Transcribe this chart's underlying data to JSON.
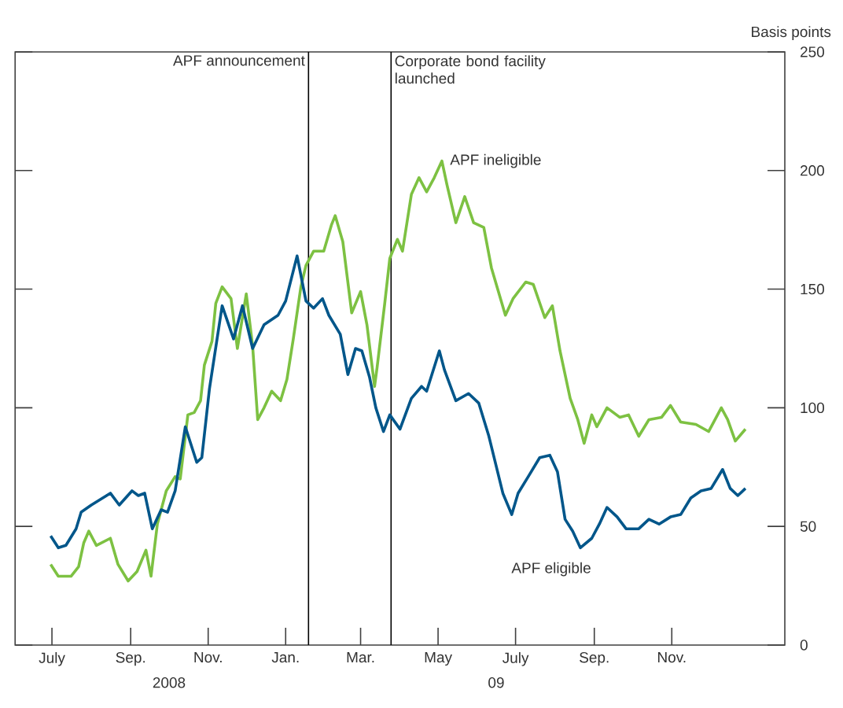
{
  "chart_data": {
    "type": "line",
    "ylabel": "Basis points",
    "xlim": [
      "2008-06-02",
      "2010-01-29"
    ],
    "xticks": [
      {
        "value": "2008-07-01",
        "label": "July"
      },
      {
        "value": "2008-09-01",
        "label": "Sep."
      },
      {
        "value": "2008-11-01",
        "label": "Nov."
      },
      {
        "value": "2009-01-01",
        "label": "Jan."
      },
      {
        "value": "2009-03-01",
        "label": "Mar."
      },
      {
        "value": "2009-05-01",
        "label": "May"
      },
      {
        "value": "2009-07-01",
        "label": "July"
      },
      {
        "value": "2009-09-01",
        "label": "Sep."
      },
      {
        "value": "2009-11-01",
        "label": "Nov."
      }
    ],
    "ylim": [
      0,
      250
    ],
    "yticks": [
      0,
      50,
      100,
      150,
      200,
      250
    ],
    "grid": false,
    "legend": false,
    "marker": "none",
    "line_style": "solid",
    "annotations": [
      "2008",
      "09"
    ],
    "ref_lines": [
      {
        "axis": "x",
        "value": "2009-01-19",
        "label": "APF announcement",
        "color": "#000000"
      },
      {
        "axis": "x",
        "value": "2009-03-25",
        "label": "Corporate bond facility launched",
        "color": "#000000"
      }
    ],
    "series": [
      {
        "name": "APF ineligible",
        "color": "#7dc142",
        "x": [
          "2008-06-30",
          "2008-07-06",
          "2008-07-16",
          "2008-07-22",
          "2008-07-26",
          "2008-07-30",
          "2008-08-05",
          "2008-08-16",
          "2008-08-22",
          "2008-08-30",
          "2008-09-06",
          "2008-09-13",
          "2008-09-17",
          "2008-09-22",
          "2008-09-29",
          "2008-10-06",
          "2008-10-10",
          "2008-10-16",
          "2008-10-21",
          "2008-10-26",
          "2008-10-29",
          "2008-11-04",
          "2008-11-07",
          "2008-11-12",
          "2008-11-19",
          "2008-11-24",
          "2008-12-01",
          "2008-12-06",
          "2008-12-10",
          "2008-12-15",
          "2008-12-21",
          "2008-12-28",
          "2009-01-02",
          "2009-01-07",
          "2009-01-13",
          "2009-01-17",
          "2009-01-23",
          "2009-01-31",
          "2009-02-06",
          "2009-02-09",
          "2009-02-15",
          "2009-02-22",
          "2009-03-01",
          "2009-03-06",
          "2009-03-12",
          "2009-03-14",
          "2009-03-20",
          "2009-03-24",
          "2009-03-30",
          "2009-04-03",
          "2009-04-10",
          "2009-04-16",
          "2009-04-22",
          "2009-04-28",
          "2009-05-04",
          "2009-05-08",
          "2009-05-15",
          "2009-05-22",
          "2009-05-29",
          "2009-06-06",
          "2009-06-12",
          "2009-06-23",
          "2009-06-29",
          "2009-07-09",
          "2009-07-15",
          "2009-07-24",
          "2009-07-30",
          "2009-08-05",
          "2009-08-13",
          "2009-08-19",
          "2009-08-24",
          "2009-08-30",
          "2009-09-03",
          "2009-09-11",
          "2009-09-21",
          "2009-09-28",
          "2009-10-06",
          "2009-10-14",
          "2009-10-24",
          "2009-10-31",
          "2009-11-08",
          "2009-11-20",
          "2009-11-30",
          "2009-12-10",
          "2009-12-15",
          "2009-12-21",
          "2009-12-29"
        ],
        "values": [
          34,
          29,
          29,
          33,
          43,
          48,
          42,
          45,
          34,
          27,
          31,
          40,
          29,
          51,
          65,
          71,
          70,
          97,
          98,
          103,
          118,
          128,
          144,
          151,
          146,
          125,
          148,
          126,
          95,
          100,
          107,
          103,
          112,
          129,
          151,
          160,
          166,
          166,
          177,
          181,
          170,
          140,
          149,
          135,
          109,
          117,
          144,
          163,
          171,
          166,
          190,
          197,
          191,
          197,
          204,
          194,
          178,
          189,
          178,
          176,
          159,
          139,
          146,
          153,
          152,
          138,
          143,
          124,
          104,
          95,
          85,
          97,
          92,
          100,
          96,
          97,
          88,
          95,
          96,
          101,
          94,
          93,
          90,
          100,
          95,
          86,
          91
        ]
      },
      {
        "name": "APF eligible",
        "color": "#00568a",
        "x": [
          "2008-06-30",
          "2008-07-06",
          "2008-07-12",
          "2008-07-20",
          "2008-07-24",
          "2008-08-01",
          "2008-08-16",
          "2008-08-23",
          "2008-09-02",
          "2008-09-07",
          "2008-09-12",
          "2008-09-18",
          "2008-09-25",
          "2008-09-30",
          "2008-10-06",
          "2008-10-14",
          "2008-10-23",
          "2008-10-27",
          "2008-11-02",
          "2008-11-12",
          "2008-11-21",
          "2008-11-28",
          "2008-12-06",
          "2008-12-15",
          "2008-12-26",
          "2009-01-01",
          "2009-01-10",
          "2009-01-17",
          "2009-01-23",
          "2009-01-30",
          "2009-02-04",
          "2009-02-13",
          "2009-02-19",
          "2009-02-25",
          "2009-03-02",
          "2009-03-08",
          "2009-03-13",
          "2009-03-19",
          "2009-03-24",
          "2009-04-01",
          "2009-04-10",
          "2009-04-18",
          "2009-04-22",
          "2009-05-02",
          "2009-05-06",
          "2009-05-15",
          "2009-05-25",
          "2009-06-02",
          "2009-06-10",
          "2009-06-21",
          "2009-06-28",
          "2009-07-03",
          "2009-07-11",
          "2009-07-20",
          "2009-07-28",
          "2009-08-03",
          "2009-08-09",
          "2009-08-15",
          "2009-08-21",
          "2009-08-30",
          "2009-09-05",
          "2009-09-11",
          "2009-09-19",
          "2009-09-26",
          "2009-10-06",
          "2009-10-14",
          "2009-10-22",
          "2009-10-31",
          "2009-11-08",
          "2009-11-16",
          "2009-11-24",
          "2009-12-02",
          "2009-12-11",
          "2009-12-17",
          "2009-12-23",
          "2009-12-29"
        ],
        "values": [
          46,
          41,
          42,
          49,
          56,
          59,
          64,
          59,
          65,
          63,
          64,
          49,
          57,
          56,
          65,
          92,
          77,
          79,
          108,
          143,
          129,
          143,
          125,
          135,
          139,
          145,
          164,
          145,
          142,
          146,
          139,
          131,
          114,
          125,
          124,
          113,
          100,
          90,
          97,
          91,
          104,
          109,
          107,
          124,
          116,
          103,
          106,
          102,
          88,
          64,
          55,
          64,
          71,
          79,
          80,
          73,
          53,
          48,
          41,
          45,
          51,
          58,
          54,
          49,
          49,
          53,
          51,
          54,
          55,
          62,
          65,
          66,
          74,
          66,
          63,
          66
        ]
      }
    ]
  }
}
